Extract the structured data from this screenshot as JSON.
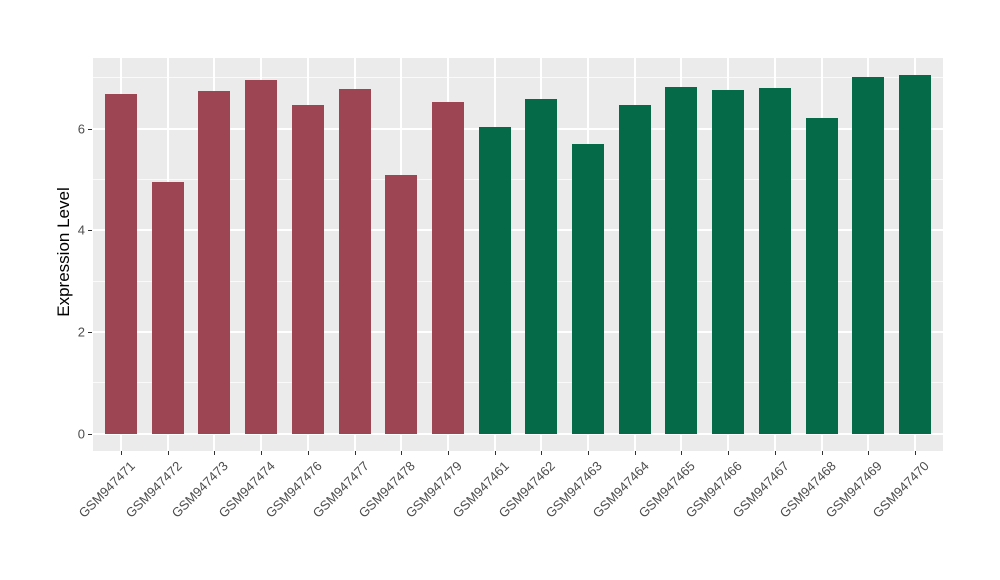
{
  "chart_data": {
    "type": "bar",
    "title": "",
    "xlabel": "",
    "ylabel": "Expression Level",
    "categories": [
      "GSM947471",
      "GSM947472",
      "GSM947473",
      "GSM947474",
      "GSM947476",
      "GSM947477",
      "GSM947478",
      "GSM947479",
      "GSM947461",
      "GSM947462",
      "GSM947463",
      "GSM947464",
      "GSM947465",
      "GSM947466",
      "GSM947467",
      "GSM947468",
      "GSM947469",
      "GSM947470"
    ],
    "values": [
      6.68,
      4.96,
      6.75,
      6.95,
      6.47,
      6.79,
      5.08,
      6.52,
      6.04,
      6.59,
      5.7,
      6.46,
      6.81,
      6.76,
      6.8,
      6.21,
      7.02,
      7.06
    ],
    "groups": [
      "maroon",
      "maroon",
      "maroon",
      "maroon",
      "maroon",
      "maroon",
      "maroon",
      "maroon",
      "green",
      "green",
      "green",
      "green",
      "green",
      "green",
      "green",
      "green",
      "green",
      "green"
    ],
    "group_colors": {
      "maroon": "#9D4553",
      "green": "#056A48"
    },
    "yticks": [
      0,
      2,
      4,
      6
    ],
    "minor_yticks": [
      1,
      3,
      5,
      7
    ],
    "ylim": [
      -0.34,
      7.39
    ],
    "x_label_rotation_deg": 45,
    "grid": true,
    "legend_position": "none",
    "style": {
      "panel_background": "#EBEBEB",
      "grid_color": "#FFFFFF",
      "axis_text_color": "#4D4D4D",
      "axis_tick_color": "#333333",
      "figure_background": "#FFFFFF"
    }
  }
}
